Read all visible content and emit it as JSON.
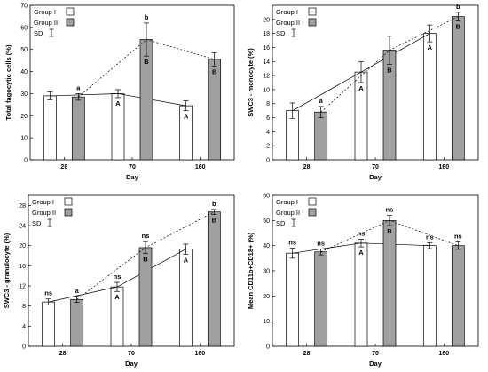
{
  "figure": {
    "background": "#ffffff"
  },
  "chart_data": [
    {
      "type": "bar",
      "xlabel": "Day",
      "ylabel": "Total fagocytic cells (%)",
      "categories": [
        "28",
        "70",
        "160"
      ],
      "ylim": [
        0,
        70
      ],
      "yticks": [
        0,
        10,
        20,
        30,
        40,
        50,
        60,
        70
      ],
      "series": [
        {
          "name": "Group I",
          "color": "#ffffff",
          "values": [
            29,
            30,
            24.5
          ],
          "sd": [
            1.8,
            1.8,
            2.2
          ],
          "line": "solid",
          "labels": [
            "",
            "A",
            "A"
          ]
        },
        {
          "name": "Group II",
          "color": "#a0a0a0",
          "values": [
            28.5,
            54.5,
            45.5
          ],
          "sd": [
            1.5,
            7.5,
            3.0
          ],
          "line": "dashed",
          "labels": [
            "a",
            "b\nB",
            "B"
          ]
        }
      ],
      "legend": {
        "entries": [
          "Group I",
          "Group II",
          "SD"
        ],
        "position": "top-left"
      }
    },
    {
      "type": "bar",
      "xlabel": "Day",
      "ylabel": "SWC3 - monocyte (%)",
      "categories": [
        "28",
        "70",
        "160"
      ],
      "ylim": [
        0,
        22
      ],
      "yticks": [
        0,
        2,
        4,
        6,
        8,
        10,
        12,
        14,
        16,
        18,
        20
      ],
      "series": [
        {
          "name": "Group I",
          "color": "#ffffff",
          "values": [
            7,
            12.5,
            18
          ],
          "sd": [
            1.1,
            1.5,
            1.2
          ],
          "line": "solid",
          "labels": [
            "",
            "A",
            "A"
          ]
        },
        {
          "name": "Group II",
          "color": "#a0a0a0",
          "values": [
            6.8,
            15.6,
            20.4
          ],
          "sd": [
            0.8,
            2.0,
            0.6
          ],
          "line": "dashed",
          "labels": [
            "a",
            "B",
            "b\nB"
          ]
        }
      ],
      "legend": {
        "entries": [
          "Group I",
          "Group II",
          "SD"
        ],
        "position": "top-left"
      }
    },
    {
      "type": "bar",
      "xlabel": "Day",
      "ylabel": "SWC3 - granulocyte (%)",
      "categories": [
        "28",
        "70",
        "160"
      ],
      "ylim": [
        0,
        30
      ],
      "yticks": [
        0,
        4,
        8,
        12,
        16,
        20,
        24,
        28
      ],
      "series": [
        {
          "name": "Group I",
          "color": "#ffffff",
          "values": [
            8.8,
            11.8,
            19.3
          ],
          "sd": [
            0.6,
            0.9,
            1.0
          ],
          "line": "solid",
          "labels": [
            "ns",
            "ns\nA",
            "A"
          ]
        },
        {
          "name": "Group II",
          "color": "#a0a0a0",
          "values": [
            9.3,
            19.6,
            26.7
          ],
          "sd": [
            0.6,
            1.2,
            0.5
          ],
          "line": "dashed",
          "labels": [
            "a",
            "ns\nB",
            "b\nB"
          ]
        }
      ],
      "legend": {
        "entries": [
          "Group I",
          "Group II",
          "SD"
        ],
        "position": "top-left"
      }
    },
    {
      "type": "bar",
      "xlabel": "Day",
      "ylabel": "Mean CD11b+CD18+ (%)",
      "categories": [
        "28",
        "70",
        "160"
      ],
      "ylim": [
        0,
        60
      ],
      "yticks": [
        0,
        10,
        20,
        30,
        40,
        50,
        60
      ],
      "series": [
        {
          "name": "Group I",
          "color": "#ffffff",
          "values": [
            37,
            41,
            40
          ],
          "sd": [
            2.0,
            1.5,
            1.2
          ],
          "line": "solid",
          "labels": [
            "ns",
            "ns\nA",
            "ns"
          ]
        },
        {
          "name": "Group II",
          "color": "#a0a0a0",
          "values": [
            37.5,
            50,
            40
          ],
          "sd": [
            1.2,
            2.0,
            1.5
          ],
          "line": "dashed",
          "labels": [
            "ns",
            "ns\nB",
            "ns"
          ]
        }
      ],
      "legend": {
        "entries": [
          "Group I",
          "Group II",
          "SD"
        ],
        "position": "top-left"
      }
    }
  ]
}
